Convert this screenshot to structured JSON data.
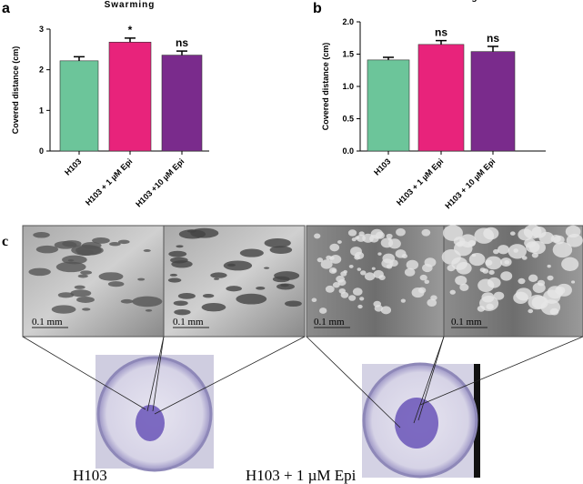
{
  "chart_data": [
    {
      "type": "bar",
      "title": "Swarming",
      "ylabel": "Covered distance (cm)",
      "categories": [
        "H103",
        "H103 + 1 µM Epi",
        "H103 +10 µM Epi"
      ],
      "values": [
        2.22,
        2.68,
        2.36
      ],
      "errors": [
        0.1,
        0.1,
        0.1
      ],
      "annotations": [
        null,
        "*",
        "ns"
      ],
      "colors": [
        "#6cc59a",
        "#e8237b",
        "#7a2b8c"
      ],
      "ylim": [
        0,
        3
      ],
      "yticks": [
        0,
        1,
        2,
        3
      ]
    },
    {
      "type": "bar",
      "title": "Twitching",
      "ylabel": "Covered distance (cm)",
      "categories": [
        "H103",
        "H103 + 1 µM Epi",
        "H103 + 10 µM Epi"
      ],
      "values": [
        1.41,
        1.65,
        1.54
      ],
      "errors": [
        0.04,
        0.06,
        0.08
      ],
      "annotations": [
        null,
        "ns",
        "ns"
      ],
      "colors": [
        "#6cc59a",
        "#e8237b",
        "#7a2b8c"
      ],
      "ylim": [
        0,
        2
      ],
      "yticks": [
        {
          "value": 0,
          "label": "0.0"
        },
        0.5,
        {
          "value": 1,
          "label": "1.0"
        },
        1.5,
        {
          "value": 2,
          "label": "2.0"
        }
      ]
    }
  ],
  "panel_labels": [
    "a",
    "b",
    "c"
  ],
  "micrographs": [
    {
      "scale": "0.1 mm"
    },
    {
      "scale": "0.1 mm"
    },
    {
      "scale": "0.1 mm"
    },
    {
      "scale": "0.1 mm"
    }
  ],
  "captions": [
    "H103",
    "H103 + 1 µM Epi"
  ]
}
